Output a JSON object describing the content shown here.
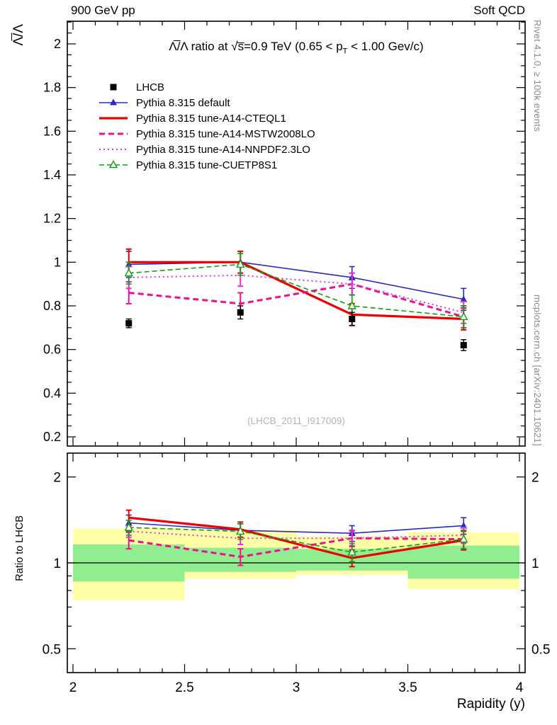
{
  "header": {
    "left": "900 GeV pp",
    "right": "Soft QCD"
  },
  "side_notes": {
    "right_top": "Rivet 4.1.0, ≥ 100k events",
    "right_bottom": "mcplots.cern.ch [arXiv:2401.10621]"
  },
  "title": {
    "pre": "Λ̅/Λ ratio at √s̅=0.9 TeV (0.65 < p",
    "sub": "T",
    "post": " < 1.00 Gev/c)"
  },
  "watermark": "(LHCB_2011_I917009)",
  "axes": {
    "x_label": "Rapidity (y)",
    "y_main_label": "Λ̅/Λ",
    "y_ratio_label": "Ratio to LHCB"
  },
  "chart_data": {
    "type": "line",
    "title": "Λ̅/Λ ratio at √s̅=0.9 TeV (0.65 < p_T < 1.00 Gev/c)",
    "xlabel": "Rapidity (y)",
    "ylabel": "Λ̅/Λ",
    "x": [
      2.25,
      2.75,
      3.25,
      3.75
    ],
    "xlim": [
      1.975,
      4.025
    ],
    "x_ticks": [
      2,
      2.5,
      3,
      3.5,
      4
    ],
    "main_panel": {
      "ylim": [
        0.155,
        2.105
      ],
      "y_ticks": [
        0.2,
        0.4,
        0.6,
        0.8,
        1,
        1.2,
        1.4,
        1.6,
        1.8,
        2
      ],
      "grid": false
    },
    "ratio_panel": {
      "ylabel": "Ratio to LHCB",
      "scale": "log",
      "ylim": [
        0.41,
        2.43
      ],
      "y_ticks": [
        0.5,
        1,
        2
      ],
      "reference_line": 1,
      "band_colors": {
        "yellow": "#ffffa6",
        "green": "#90ee90"
      },
      "bands": [
        {
          "x0": 2.0,
          "x1": 2.5,
          "yellow": [
            0.74,
            1.32
          ],
          "green": [
            0.86,
            1.16
          ]
        },
        {
          "x0": 2.5,
          "x1": 3.0,
          "yellow": [
            0.88,
            1.3
          ],
          "green": [
            0.93,
            1.13
          ]
        },
        {
          "x0": 3.0,
          "x1": 3.5,
          "yellow": [
            0.91,
            1.24
          ],
          "green": [
            0.94,
            1.12
          ]
        },
        {
          "x0": 3.5,
          "x1": 4.0,
          "yellow": [
            0.81,
            1.28
          ],
          "green": [
            0.88,
            1.15
          ]
        }
      ]
    },
    "reference": {
      "name": "LHCB",
      "color": "#000000",
      "marker": "square",
      "values": [
        0.72,
        0.77,
        0.74,
        0.62
      ],
      "errors": [
        0.02,
        0.03,
        0.03,
        0.025
      ]
    },
    "series": [
      {
        "name": "Pythia 8.315 default",
        "color": "#2a2ac0",
        "dash": "solid",
        "width": 1.6,
        "marker": "triangle-filled",
        "values": [
          0.99,
          1.0,
          0.93,
          0.83
        ],
        "errors": [
          0.06,
          0.05,
          0.05,
          0.05
        ],
        "ratio": [
          1.38,
          1.3,
          1.27,
          1.35
        ],
        "ratio_errors": [
          0.09,
          0.07,
          0.08,
          0.09
        ]
      },
      {
        "name": "Pythia 8.315 tune-A14-CTEQL1",
        "color": "#ee0000",
        "dash": "solid",
        "width": 3.2,
        "marker": "none",
        "values": [
          1.0,
          1.0,
          0.76,
          0.74
        ],
        "errors": [
          0.06,
          0.05,
          0.05,
          0.05
        ],
        "ratio": [
          1.44,
          1.31,
          1.04,
          1.2
        ],
        "ratio_errors": [
          0.09,
          0.08,
          0.07,
          0.09
        ]
      },
      {
        "name": "Pythia 8.315 tune-A14-MSTW2008LO",
        "color": "#ec128c",
        "dash": "8,5",
        "width": 3,
        "marker": "none",
        "values": [
          0.86,
          0.81,
          0.9,
          0.75
        ],
        "errors": [
          0.05,
          0.05,
          0.05,
          0.05
        ],
        "ratio": [
          1.2,
          1.05,
          1.22,
          1.21
        ],
        "ratio_errors": [
          0.08,
          0.07,
          0.08,
          0.09
        ]
      },
      {
        "name": "Pythia 8.315 tune-A14-NNPDF2.3LO",
        "color": "#dd33dd",
        "dash": "2,4",
        "width": 2,
        "marker": "none",
        "values": [
          0.93,
          0.94,
          0.9,
          0.77
        ],
        "errors": [
          0.05,
          0.05,
          0.05,
          0.05
        ],
        "ratio": [
          1.29,
          1.22,
          1.22,
          1.25
        ],
        "ratio_errors": [
          0.06,
          0.06,
          0.07,
          0.08
        ]
      },
      {
        "name": "Pythia 8.315 tune-CUETP8S1",
        "color": "#11a011",
        "dash": "7,4",
        "width": 1.6,
        "marker": "triangle-open",
        "values": [
          0.95,
          0.99,
          0.8,
          0.75
        ],
        "errors": [
          0.05,
          0.05,
          0.05,
          0.05
        ],
        "ratio": [
          1.33,
          1.29,
          1.09,
          1.21
        ],
        "ratio_errors": [
          0.08,
          0.08,
          0.08,
          0.09
        ]
      }
    ]
  }
}
